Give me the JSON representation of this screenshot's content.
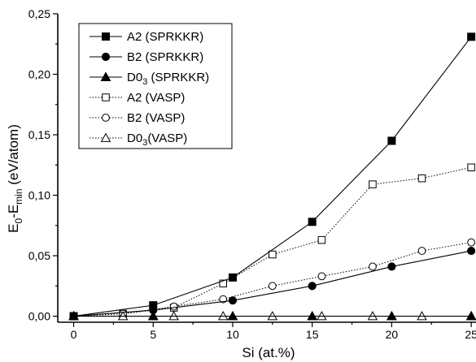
{
  "chart_data": {
    "type": "line",
    "xlabel": "Si (at.%)",
    "ylabel_parts": [
      "E",
      "0",
      "-E",
      "min",
      " (eV/atom)"
    ],
    "xlim": [
      -1,
      25.3
    ],
    "ylim": [
      -0.005,
      0.25
    ],
    "x_ticks": [
      0,
      5,
      10,
      15,
      20,
      25
    ],
    "y_ticks": [
      0.0,
      0.05,
      0.1,
      0.15,
      0.2,
      0.25
    ],
    "y_tick_labels": [
      "0,00",
      "0,05",
      "0,10",
      "0,15",
      "0,20",
      "0,25"
    ],
    "legend_position": "top-left",
    "series": [
      {
        "name_parts": [
          "A2 (SPRKKR)"
        ],
        "marker": "square-filled",
        "line": "solid",
        "x": [
          0,
          5,
          10,
          15,
          20,
          25
        ],
        "y": [
          0.0,
          0.009,
          0.032,
          0.078,
          0.145,
          0.231
        ]
      },
      {
        "name_parts": [
          "B2 (SPRKKR)"
        ],
        "marker": "circle-filled",
        "line": "solid",
        "x": [
          0,
          5,
          10,
          15,
          20,
          25
        ],
        "y": [
          0.0,
          0.005,
          0.013,
          0.025,
          0.041,
          0.054
        ]
      },
      {
        "name_parts": [
          "D0",
          "3",
          " (SPRKKR)"
        ],
        "marker": "triangle-filled",
        "line": "solid",
        "x": [
          0,
          5,
          10,
          15,
          20,
          25
        ],
        "y": [
          0.0,
          0.0,
          0.0,
          0.0,
          0.0,
          0.0
        ]
      },
      {
        "name_parts": [
          "A2 (VASP)"
        ],
        "marker": "square-open",
        "line": "dotted",
        "x": [
          0,
          3.1,
          6.3,
          9.4,
          12.5,
          15.6,
          18.8,
          21.9,
          25
        ],
        "y": [
          0.0,
          0.002,
          0.007,
          0.027,
          0.051,
          0.063,
          0.109,
          0.114,
          0.123
        ]
      },
      {
        "name_parts": [
          "B2 (VASP)"
        ],
        "marker": "circle-open",
        "line": "dotted",
        "x": [
          0,
          3.1,
          6.3,
          9.4,
          12.5,
          15.6,
          18.8,
          21.9,
          25
        ],
        "y": [
          0.0,
          0.002,
          0.008,
          0.014,
          0.025,
          0.033,
          0.041,
          0.054,
          0.061
        ]
      },
      {
        "name_parts": [
          "D0",
          "3",
          "(VASP)"
        ],
        "marker": "triangle-open",
        "line": "dotted",
        "x": [
          0,
          3.1,
          6.3,
          9.4,
          12.5,
          15.6,
          18.8,
          21.9,
          25
        ],
        "y": [
          0.0,
          0.0,
          0.0,
          0.0,
          0.0,
          0.0,
          0.0,
          0.0,
          0.0
        ]
      }
    ]
  }
}
